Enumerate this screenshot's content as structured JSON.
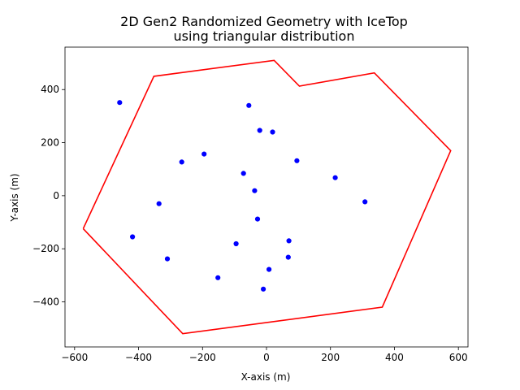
{
  "chart_data": {
    "type": "scatter",
    "title": "2D Gen2 Randomized Geometry with IceTop",
    "subtitle": "using triangular distribution",
    "xlabel": "X-axis (m)",
    "ylabel": "Y-axis (m)",
    "xlim": [
      -630,
      630
    ],
    "ylim": [
      -570,
      560
    ],
    "xticks": [
      -600,
      -400,
      -200,
      0,
      200,
      400,
      600
    ],
    "yticks": [
      -400,
      -200,
      0,
      200,
      400
    ],
    "grid": false,
    "colors": {
      "boundary": "#ff0000",
      "stations": "#0000ff"
    },
    "boundary": {
      "x": [
        -573,
        -352,
        24,
        103,
        337,
        576,
        362,
        -262,
        -573
      ],
      "y": [
        -124,
        450,
        510,
        413,
        463,
        170,
        -420,
        -520,
        -124
      ]
    },
    "stations": {
      "x": [
        -459,
        -55,
        -21,
        19,
        -195,
        -265,
        95,
        -72,
        215,
        -37,
        -336,
        308,
        -28,
        -419,
        -95,
        70,
        -310,
        68,
        8,
        -152,
        -10
      ],
      "y": [
        351,
        340,
        246,
        240,
        157,
        127,
        132,
        84,
        68,
        19,
        -30,
        -23,
        -88,
        -155,
        -181,
        -170,
        -238,
        -232,
        -278,
        -309,
        -352
      ]
    }
  }
}
